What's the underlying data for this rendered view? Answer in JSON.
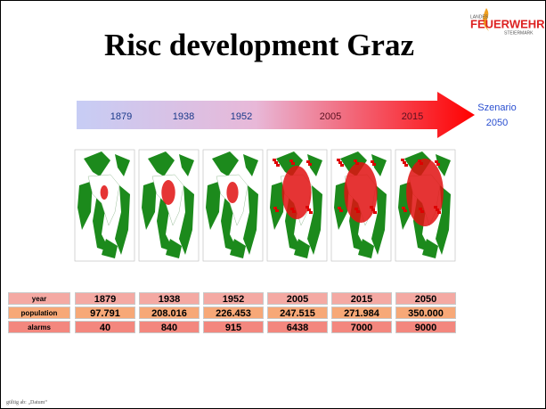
{
  "header": {
    "title": "Risc development Graz",
    "logo": {
      "top": "LANDES",
      "main": "FEUERWEHR",
      "sub": "STEIERMARK"
    }
  },
  "timeline": {
    "labels": [
      "1879",
      "1938",
      "1952",
      "2005",
      "2015"
    ],
    "scenario": [
      "Szenario",
      "2050"
    ]
  },
  "table": {
    "rows": [
      [
        "year",
        "1879",
        "1938",
        "1952",
        "2005",
        "2015",
        "2050"
      ],
      [
        "population",
        "97.791",
        "208.016",
        "226.453",
        "247.515",
        "271.984",
        "350.000"
      ],
      [
        "alarms",
        "40",
        "840",
        "915",
        "6438",
        "7000",
        "9000"
      ]
    ]
  },
  "footer": {
    "text": "gültig ab: „Datum“"
  }
}
